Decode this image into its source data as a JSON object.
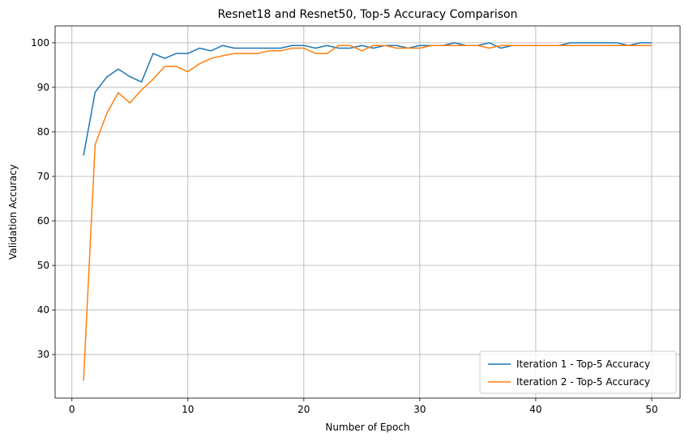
{
  "chart_data": {
    "type": "line",
    "title": "Resnet18 and Resnet50, Top-5 Accuracy Comparison",
    "xlabel": "Number of Epoch",
    "ylabel": "Validation Accuracy",
    "xlim": [
      -1.45,
      52.45
    ],
    "ylim": [
      20.2,
      103.8
    ],
    "xticks": [
      0,
      10,
      20,
      30,
      40,
      50
    ],
    "yticks": [
      30,
      40,
      50,
      60,
      70,
      80,
      90,
      100
    ],
    "grid": true,
    "legend_position": "lower-right",
    "x": [
      1,
      2,
      3,
      4,
      5,
      6,
      7,
      8,
      9,
      10,
      11,
      12,
      13,
      14,
      15,
      16,
      17,
      18,
      19,
      20,
      21,
      22,
      23,
      24,
      25,
      26,
      27,
      28,
      29,
      30,
      31,
      32,
      33,
      34,
      35,
      36,
      37,
      38,
      39,
      40,
      41,
      42,
      43,
      44,
      45,
      46,
      47,
      48,
      49,
      50
    ],
    "series": [
      {
        "name": "Iteration 1 - Top-5 Accuracy",
        "color": "#1f77b4",
        "values": [
          74.7,
          88.9,
          92.3,
          94.1,
          92.4,
          91.2,
          97.6,
          96.5,
          97.6,
          97.6,
          98.8,
          98.2,
          99.4,
          98.8,
          98.8,
          98.8,
          98.8,
          98.8,
          99.4,
          99.4,
          98.8,
          99.4,
          98.8,
          98.8,
          99.4,
          98.8,
          99.4,
          99.4,
          98.8,
          99.4,
          99.4,
          99.4,
          100,
          99.4,
          99.4,
          100,
          98.8,
          99.4,
          99.4,
          99.4,
          99.4,
          99.4,
          100,
          100,
          100,
          100,
          100,
          99.4,
          100,
          100
        ]
      },
      {
        "name": "Iteration 2 - Top-5 Accuracy",
        "color": "#ff7f0e",
        "values": [
          24.1,
          77.1,
          84.1,
          88.8,
          86.5,
          89.4,
          91.8,
          94.7,
          94.7,
          93.5,
          95.3,
          96.5,
          97.1,
          97.6,
          97.6,
          97.6,
          98.2,
          98.2,
          98.8,
          98.8,
          97.6,
          97.6,
          99.4,
          99.4,
          98.2,
          99.4,
          99.4,
          98.8,
          98.8,
          98.8,
          99.4,
          99.4,
          99.4,
          99.4,
          99.4,
          98.8,
          99.4,
          99.4,
          99.4,
          99.4,
          99.4,
          99.4,
          99.4,
          99.4,
          99.4,
          99.4,
          99.4,
          99.4,
          99.4,
          99.4
        ]
      }
    ]
  }
}
